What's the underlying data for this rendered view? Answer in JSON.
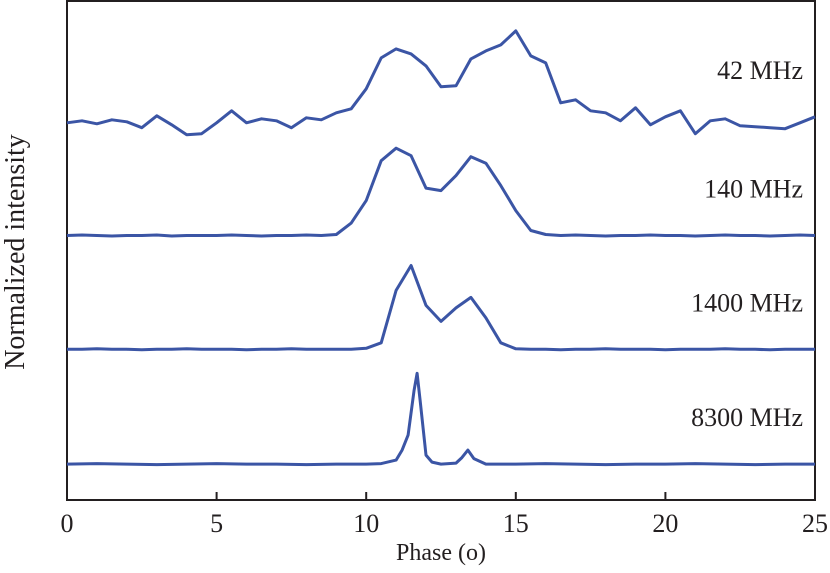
{
  "chart_data": {
    "type": "line",
    "xlabel": "Phase (o)",
    "ylabel": "Normalized intensity",
    "x": [
      0,
      0.5,
      1,
      1.5,
      2,
      2.5,
      3,
      3.5,
      4,
      4.5,
      5,
      5.5,
      6,
      6.5,
      7,
      7.5,
      8,
      8.5,
      9,
      9.5,
      10,
      10.5,
      11,
      11.5,
      12,
      12.5,
      13,
      13.5,
      14,
      14.5,
      15,
      15.5,
      16,
      16.5,
      17,
      17.5,
      18,
      18.5,
      19,
      19.5,
      20,
      20.5,
      21,
      21.5,
      22,
      22.5,
      23,
      23.5,
      24,
      24.5,
      25
    ],
    "xlim": [
      0,
      25
    ],
    "xticks": [
      0,
      5,
      10,
      15,
      20,
      25
    ],
    "ylim": [
      0,
      100
    ],
    "series": [
      {
        "name": "42 MHz",
        "color": "#3b55a5",
        "values": [
          75.6,
          76,
          75.4,
          76.2,
          75.8,
          74.6,
          77,
          75.2,
          73.2,
          73.4,
          75.6,
          78,
          75.6,
          76.4,
          76,
          74.6,
          76.6,
          76.2,
          77.6,
          78.4,
          82.4,
          88.6,
          90.4,
          89.4,
          87,
          82.8,
          83,
          88.4,
          90,
          91.2,
          94,
          89,
          87.6,
          79.6,
          80.2,
          78,
          77.6,
          76,
          78.6,
          75.2,
          76.8,
          78,
          73.4,
          76,
          76.4,
          75,
          74.8,
          74.6,
          74.4,
          75.6,
          76.8
        ]
      },
      {
        "name": "140 MHz",
        "color": "#3b55a5",
        "values": [
          53,
          53.1,
          53,
          52.9,
          53,
          53,
          53.1,
          52.9,
          53,
          53,
          53,
          53.1,
          53,
          52.9,
          53,
          53,
          53.1,
          53,
          53.2,
          55.5,
          60,
          68,
          70.5,
          69,
          62.5,
          62,
          65,
          68.8,
          67.5,
          63,
          58,
          54,
          53.2,
          53,
          53.1,
          53,
          52.9,
          53,
          53,
          53.1,
          53,
          53,
          52.9,
          53,
          53.1,
          53,
          53,
          52.9,
          53,
          53.1,
          53
        ]
      },
      {
        "name": "1400 MHz",
        "color": "#3b55a5",
        "values": [
          30.2,
          30.2,
          30.3,
          30.2,
          30.2,
          30.1,
          30.2,
          30.2,
          30.3,
          30.2,
          30.2,
          30.2,
          30.1,
          30.2,
          30.2,
          30.3,
          30.2,
          30.2,
          30.2,
          30.2,
          30.4,
          31.5,
          42,
          47,
          39,
          35.8,
          38.5,
          40.6,
          36.5,
          31.5,
          30.3,
          30.2,
          30.2,
          30.1,
          30.2,
          30.2,
          30.3,
          30.2,
          30.2,
          30.2,
          30.1,
          30.2,
          30.2,
          30.2,
          30.3,
          30.2,
          30.2,
          30.1,
          30.2,
          30.2,
          30.2
        ]
      },
      {
        "name": "8300 MHz",
        "color": "#3b55a5",
        "x": [
          0,
          1,
          2,
          3,
          4,
          5,
          6,
          7,
          8,
          9,
          10,
          10.5,
          11,
          11.2,
          11.4,
          11.6,
          11.7,
          11.8,
          12,
          12.2,
          12.5,
          13,
          13.2,
          13.4,
          13.6,
          14,
          15,
          16,
          17,
          18,
          19,
          20,
          21,
          22,
          23,
          24,
          25
        ],
        "values": [
          7.2,
          7.3,
          7.2,
          7.1,
          7.2,
          7.3,
          7.2,
          7.2,
          7.1,
          7.2,
          7.2,
          7.3,
          8,
          10,
          13,
          22,
          25.4,
          20,
          9,
          7.6,
          7.2,
          7.4,
          8.5,
          10,
          8.3,
          7.2,
          7.2,
          7.3,
          7.2,
          7.1,
          7.2,
          7.2,
          7.3,
          7.2,
          7.1,
          7.2,
          7.2
        ]
      }
    ]
  }
}
